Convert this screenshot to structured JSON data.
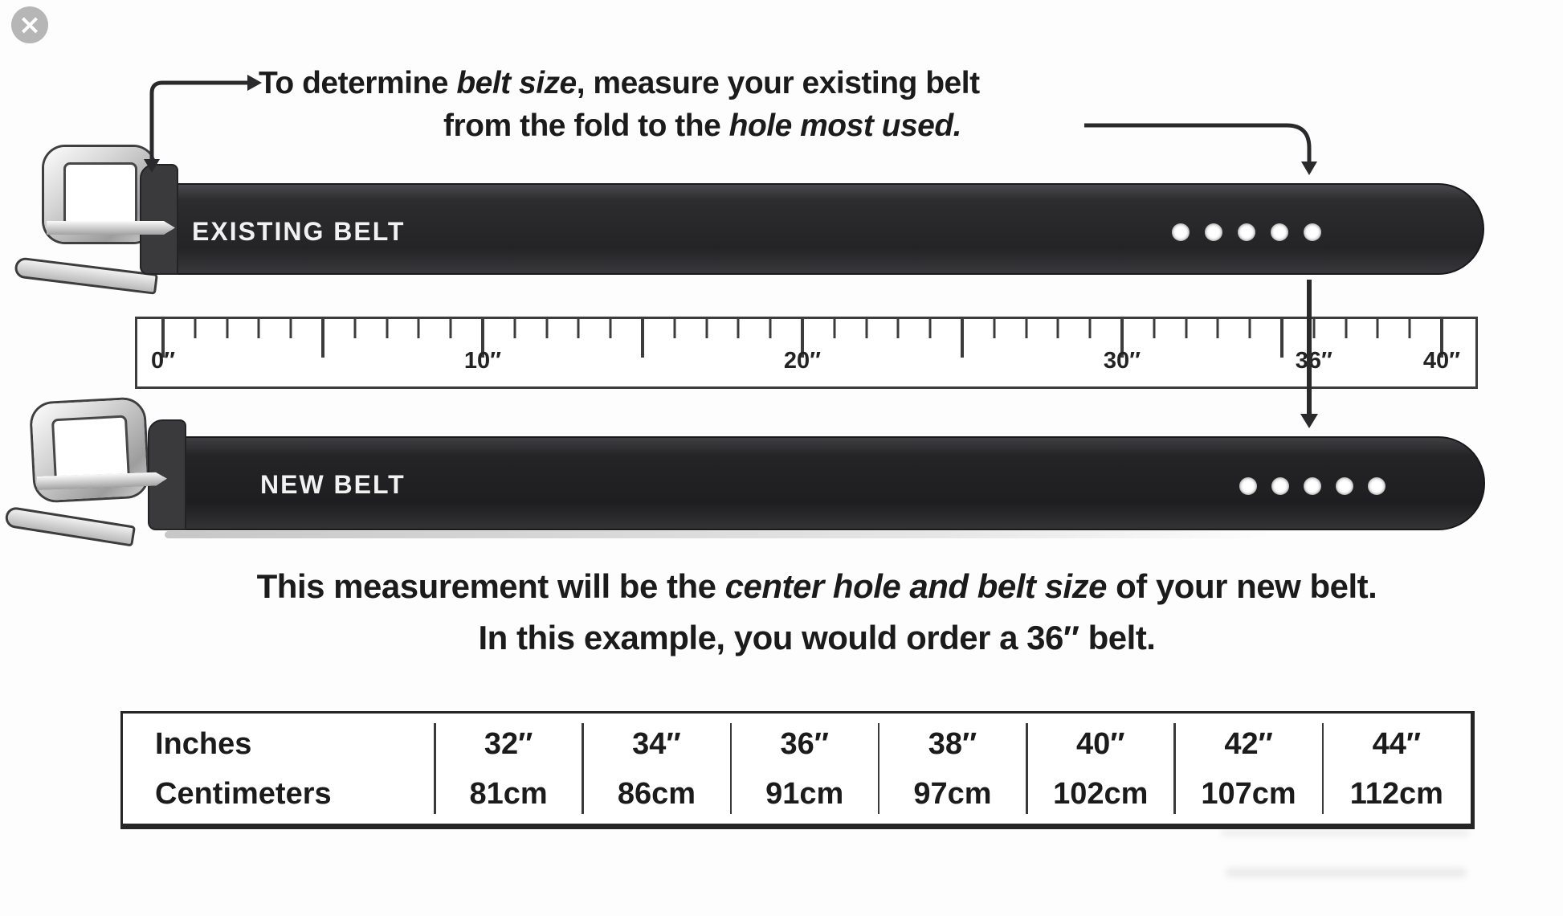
{
  "viewer": {
    "close_icon": "×"
  },
  "instructions": {
    "top1_pre": "To determine ",
    "top1_em": "belt size",
    "top1_post": ", measure your existing belt",
    "top2_pre": "from the fold to the ",
    "top2_em": "hole most used.",
    "bottom1_pre": "This measurement will be the ",
    "bottom1_em": "center hole and belt size",
    "bottom1_post": " of your new belt.",
    "bottom2": "In this example, you would order a 36″ belt."
  },
  "belts": {
    "existing_label": "EXISTING BELT",
    "new_label": "NEW BELT",
    "holes_per_belt": 5,
    "highlighted_size": "36″"
  },
  "ruler": {
    "min_inches": 0,
    "max_inches": 40,
    "major_tick_every": 5,
    "labels": [
      {
        "value": 0,
        "text": "0″"
      },
      {
        "value": 10,
        "text": "10″"
      },
      {
        "value": 20,
        "text": "20″"
      },
      {
        "value": 30,
        "text": "30″"
      },
      {
        "value": 36,
        "text": "36″"
      },
      {
        "value": 40,
        "text": "40″"
      }
    ]
  },
  "size_table": {
    "row_headers": [
      "Inches",
      "Centimeters"
    ],
    "sizes": [
      {
        "inches": "32″",
        "centimeters": "81cm"
      },
      {
        "inches": "34″",
        "centimeters": "86cm"
      },
      {
        "inches": "36″",
        "centimeters": "91cm"
      },
      {
        "inches": "38″",
        "centimeters": "97cm"
      },
      {
        "inches": "40″",
        "centimeters": "102cm"
      },
      {
        "inches": "42″",
        "centimeters": "107cm"
      },
      {
        "inches": "44″",
        "centimeters": "112cm"
      }
    ]
  }
}
